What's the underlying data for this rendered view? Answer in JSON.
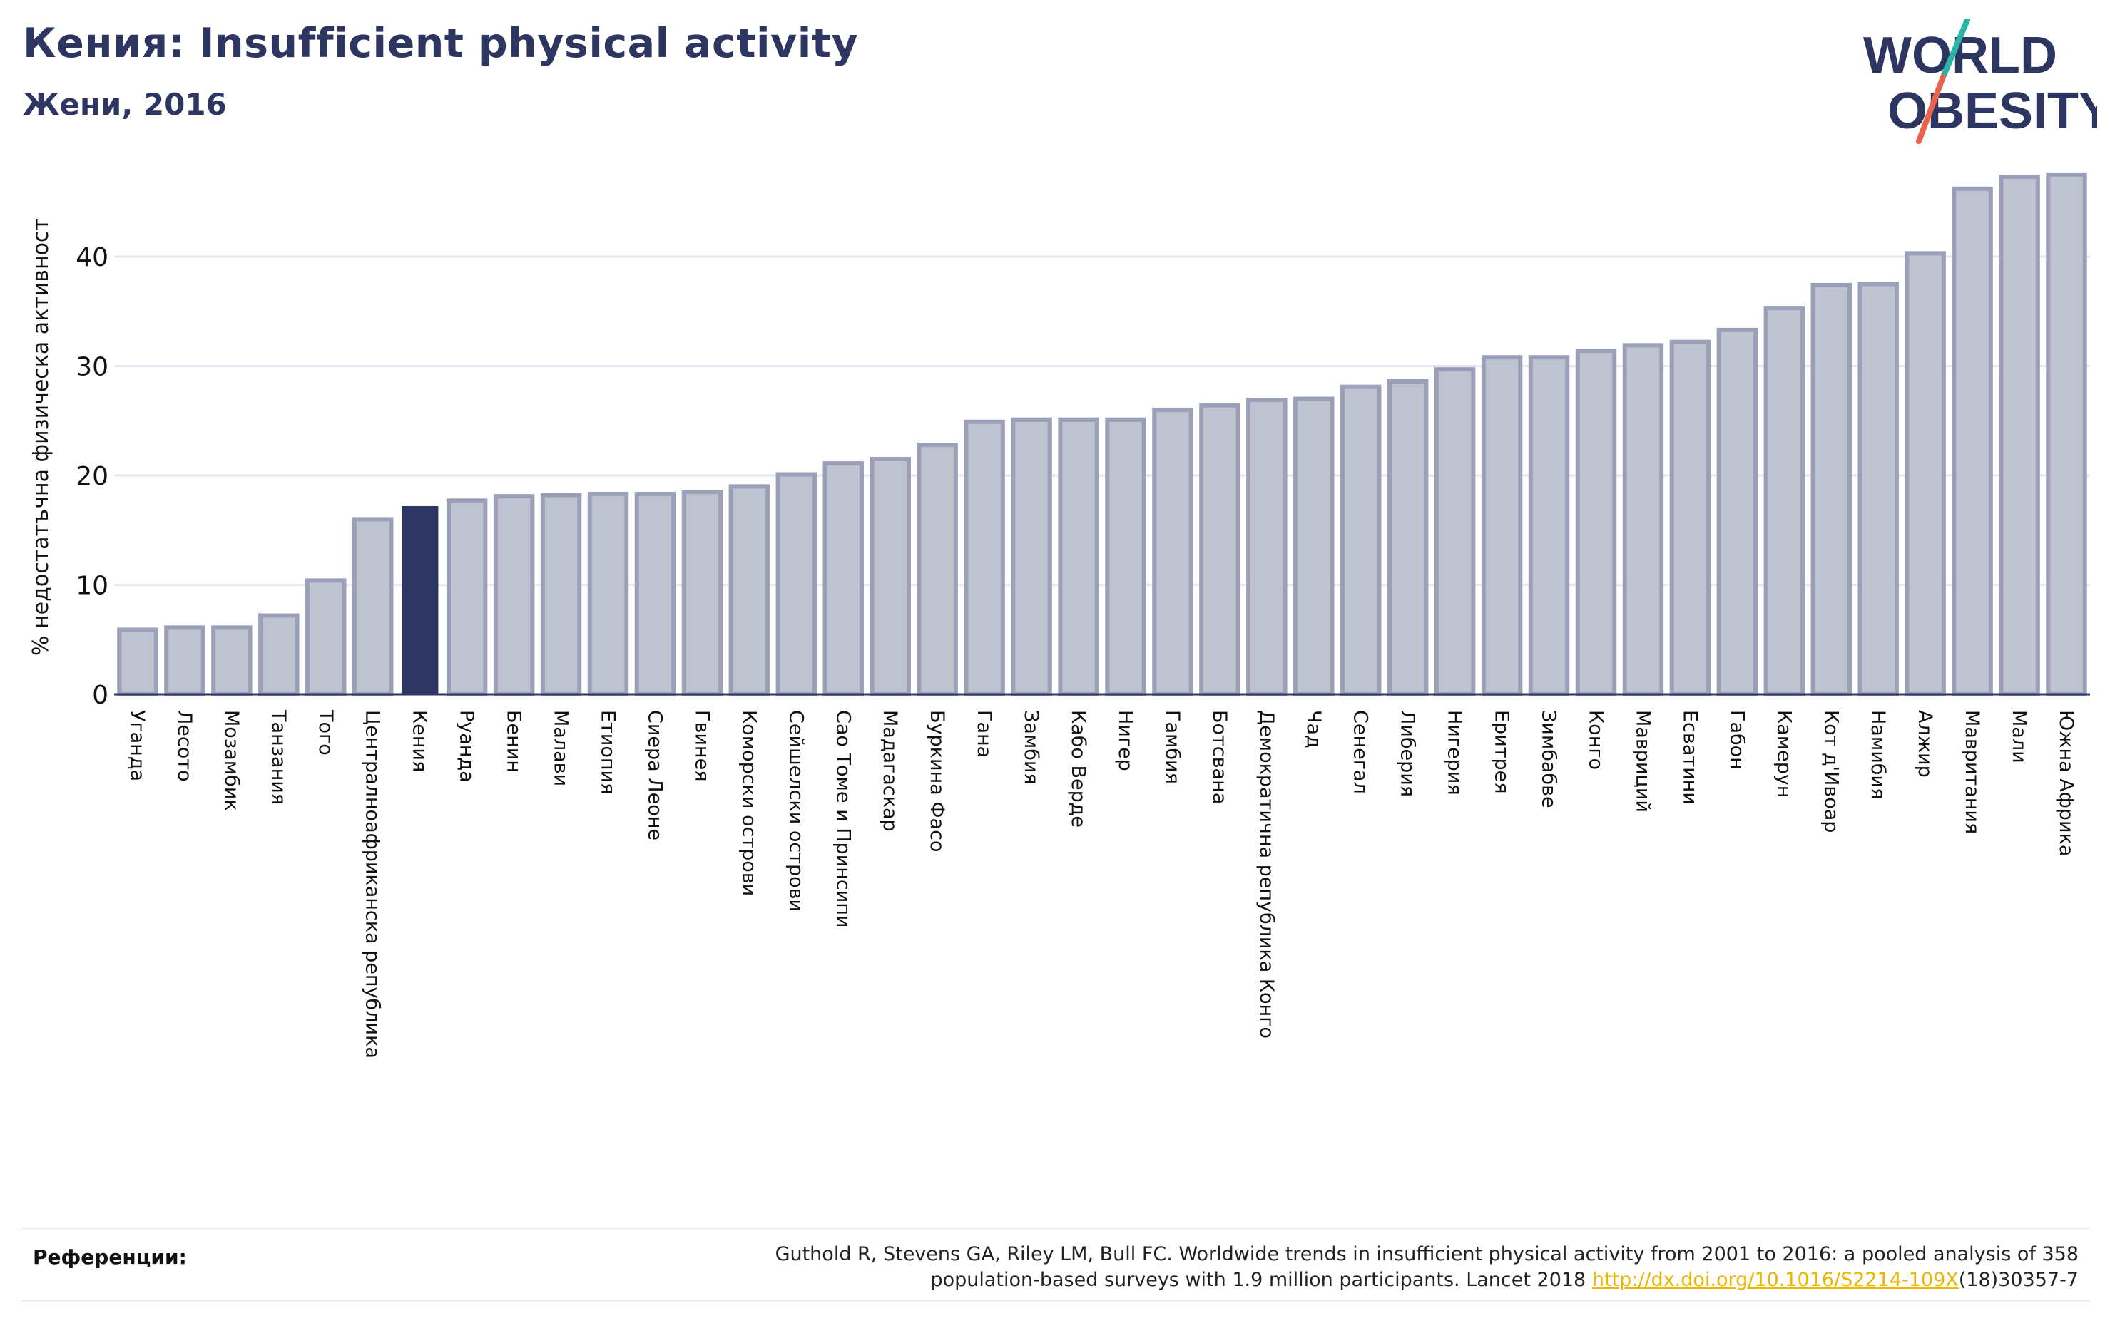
{
  "header": {
    "title": "Кения: Insufficient physical activity",
    "subtitle": "Жени, 2016"
  },
  "logo": {
    "line1": "WORLD",
    "line2": "OBESITY",
    "colors": {
      "text": "#2d3561",
      "slash_top": "#2bb5a8",
      "slash_bottom": "#e8644f"
    }
  },
  "references": {
    "label": "Референции:",
    "text_line1": "Guthold R, Stevens GA, Riley LM, Bull FC. Worldwide trends in insufficient physical activity from 2001 to 2016: a pooled analysis of 358",
    "text_line2_before": "population-based surveys with 1.9 million participants. Lancet 2018 ",
    "link_text": "http://dx.doi.org/10.1016/S2214-109X",
    "text_line2_after": "(18)30357-7"
  },
  "colors": {
    "bar_fill": "#bfc2cf",
    "bar_stroke": "#9ba0b8",
    "highlight": "#2d3561",
    "grid": "#e6e6ec",
    "axis": "#2d3561"
  },
  "chart_data": {
    "type": "bar",
    "ylabel": "% недостатъчна физическа активност",
    "ylim": [
      0,
      48
    ],
    "yticks": [
      0,
      10,
      20,
      30,
      40
    ],
    "grid": true,
    "highlight": "Кения",
    "categories": [
      "Уганда",
      "Лесото",
      "Мозамбик",
      "Танзания",
      "Того",
      "Централноафриканска република",
      "Кения",
      "Руанда",
      "Бенин",
      "Малави",
      "Етиопия",
      "Сиера Леоне",
      "Гвинея",
      "Коморски острови",
      "Сейшелски острови",
      "Сао Томе и Принсипи",
      "Мадагаскар",
      "Буркина Фасо",
      "Гана",
      "Замбия",
      "Кабо Верде",
      "Нигер",
      "Гамбия",
      "Ботсвана",
      "Демократична република Конго",
      "Чад",
      "Сенегал",
      "Либерия",
      "Нигерия",
      "Еритрея",
      "Зимбабве",
      "Конго",
      "Мавриций",
      "Есватини",
      "Габон",
      "Камерун",
      "Кот д'Ивоар",
      "Намибия",
      "Алжир",
      "Мавритания",
      "Мали",
      "Южна Африка"
    ],
    "values": [
      5.9,
      6.1,
      6.1,
      7.2,
      10.4,
      16.0,
      17.2,
      17.7,
      18.1,
      18.2,
      18.3,
      18.3,
      18.5,
      19.0,
      20.1,
      21.1,
      21.5,
      22.8,
      24.9,
      25.1,
      25.1,
      25.1,
      26.0,
      26.4,
      26.9,
      27.0,
      28.1,
      28.6,
      29.7,
      30.8,
      30.8,
      31.4,
      31.9,
      32.2,
      33.3,
      35.3,
      37.4,
      37.5,
      40.3,
      46.2,
      47.3,
      47.5
    ]
  }
}
